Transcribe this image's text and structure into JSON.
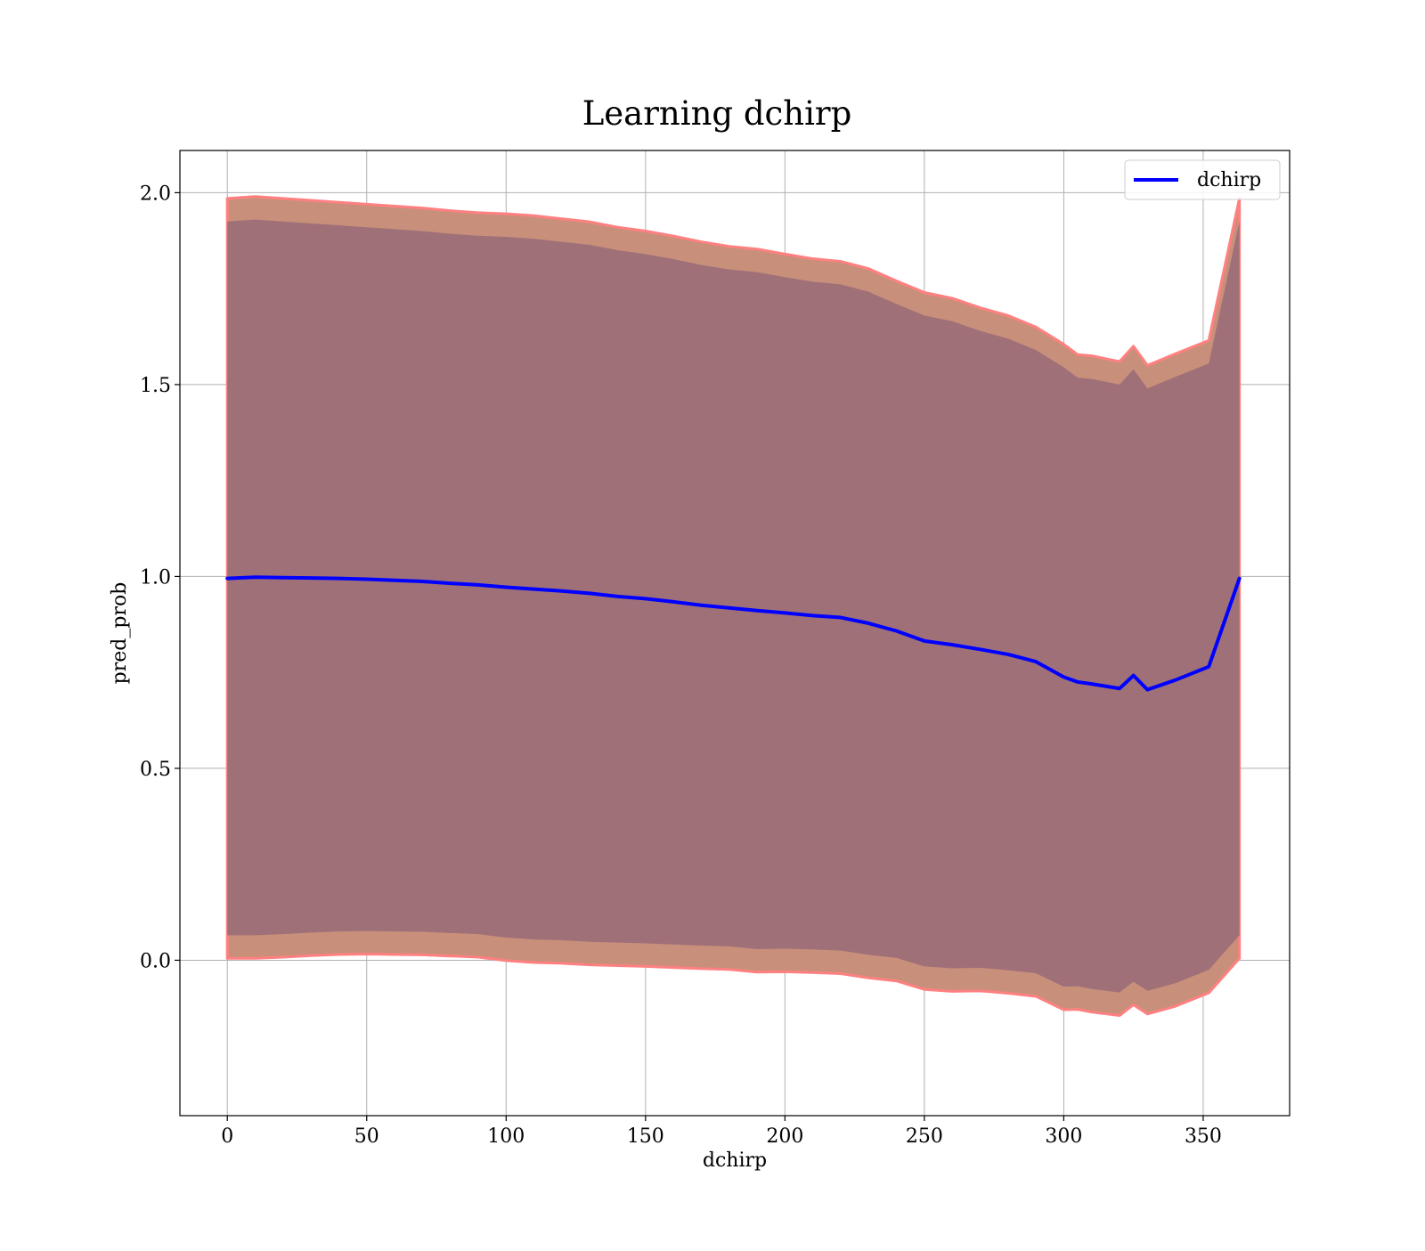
{
  "chart_data": {
    "type": "line",
    "title": "Learning dchirp",
    "xlabel": "dchirp",
    "ylabel": "pred_prob",
    "xlim": [
      -17,
      381
    ],
    "ylim": [
      -0.405,
      2.11
    ],
    "x_ticks": [
      0,
      50,
      100,
      150,
      200,
      250,
      300,
      350
    ],
    "y_ticks": [
      0.0,
      0.5,
      1.0,
      1.5,
      2.0
    ],
    "x_tick_labels": [
      "0",
      "50",
      "100",
      "150",
      "200",
      "250",
      "300",
      "350"
    ],
    "y_tick_labels": [
      "0.0",
      "0.5",
      "1.0",
      "1.5",
      "2.0"
    ],
    "grid": true,
    "legend": {
      "position": "top-right",
      "entries": [
        "dchirp"
      ]
    },
    "series": [
      {
        "name": "dchirp",
        "color": "#0000ff",
        "x": [
          0,
          10,
          20,
          30,
          40,
          50,
          60,
          70,
          80,
          90,
          100,
          110,
          120,
          130,
          140,
          150,
          160,
          170,
          180,
          190,
          200,
          210,
          220,
          230,
          240,
          250,
          260,
          270,
          280,
          290,
          300,
          305,
          310,
          320,
          325,
          330,
          340,
          352,
          363
        ],
        "y": [
          0.995,
          0.998,
          0.997,
          0.996,
          0.995,
          0.993,
          0.99,
          0.987,
          0.982,
          0.978,
          0.972,
          0.967,
          0.962,
          0.956,
          0.948,
          0.942,
          0.934,
          0.925,
          0.918,
          0.911,
          0.905,
          0.898,
          0.893,
          0.878,
          0.858,
          0.832,
          0.822,
          0.81,
          0.797,
          0.778,
          0.738,
          0.725,
          0.72,
          0.708,
          0.742,
          0.705,
          0.73,
          0.765,
          0.995
        ]
      }
    ],
    "bands": [
      {
        "description_role": "outer",
        "color": "#c8907a",
        "edge_color": "#ff8080",
        "upper": [
          1.985,
          1.99,
          1.985,
          1.98,
          1.975,
          1.97,
          1.965,
          1.96,
          1.953,
          1.948,
          1.945,
          1.94,
          1.932,
          1.924,
          1.91,
          1.9,
          1.887,
          1.872,
          1.86,
          1.853,
          1.84,
          1.828,
          1.821,
          1.802,
          1.77,
          1.74,
          1.725,
          1.7,
          1.68,
          1.65,
          1.605,
          1.578,
          1.575,
          1.56,
          1.6,
          1.55,
          1.58,
          1.615,
          1.985
        ],
        "lower": [
          0.005,
          0.005,
          0.008,
          0.012,
          0.015,
          0.016,
          0.015,
          0.014,
          0.011,
          0.008,
          -0.001,
          -0.006,
          -0.008,
          -0.012,
          -0.014,
          -0.016,
          -0.019,
          -0.022,
          -0.024,
          -0.031,
          -0.03,
          -0.032,
          -0.035,
          -0.046,
          -0.054,
          -0.076,
          -0.081,
          -0.08,
          -0.086,
          -0.094,
          -0.129,
          -0.128,
          -0.135,
          -0.144,
          -0.116,
          -0.14,
          -0.12,
          -0.085,
          0.005
        ]
      },
      {
        "description_role": "inner",
        "color": "#a07078",
        "upper": [
          1.925,
          1.93,
          1.925,
          1.92,
          1.915,
          1.91,
          1.905,
          1.9,
          1.893,
          1.888,
          1.885,
          1.88,
          1.872,
          1.864,
          1.85,
          1.84,
          1.827,
          1.812,
          1.8,
          1.793,
          1.78,
          1.768,
          1.761,
          1.742,
          1.71,
          1.68,
          1.665,
          1.64,
          1.62,
          1.59,
          1.545,
          1.518,
          1.515,
          1.5,
          1.54,
          1.49,
          1.52,
          1.555,
          1.925
        ],
        "lower": [
          0.065,
          0.065,
          0.068,
          0.072,
          0.075,
          0.076,
          0.075,
          0.074,
          0.071,
          0.068,
          0.059,
          0.054,
          0.052,
          0.048,
          0.046,
          0.044,
          0.041,
          0.038,
          0.036,
          0.029,
          0.03,
          0.028,
          0.025,
          0.014,
          0.006,
          -0.016,
          -0.021,
          -0.02,
          -0.026,
          -0.034,
          -0.069,
          -0.068,
          -0.075,
          -0.084,
          -0.056,
          -0.08,
          -0.06,
          -0.025,
          0.065
        ]
      }
    ]
  }
}
